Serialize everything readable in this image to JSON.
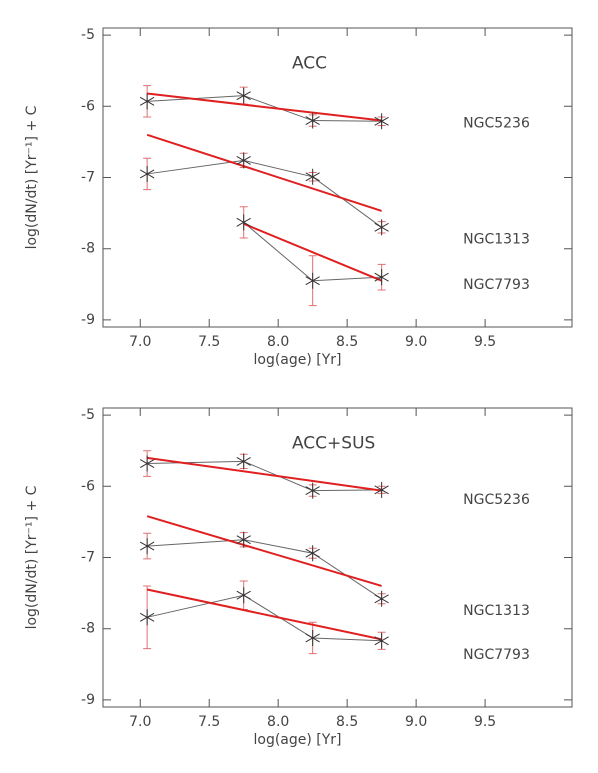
{
  "chart_data": [
    {
      "type": "line",
      "annotation": "ACC",
      "xlabel": "log(age) [Yr]",
      "ylabel": "log(dN/dt) [Yr⁻¹] + C",
      "xlim": [
        6.73,
        10.13
      ],
      "ylim": [
        -9.1,
        -4.9
      ],
      "xticks": [
        {
          "value": 7,
          "label": "7.0"
        },
        7.5,
        {
          "value": 8,
          "label": "8.0"
        },
        8.5,
        {
          "value": 9,
          "label": "9.0"
        },
        9.5
      ],
      "yticks": [
        -5,
        -6,
        -7,
        -8,
        -9
      ],
      "series": [
        {
          "name": "NGC5236",
          "color": "#666666",
          "error_color": "#e07070",
          "x": [
            7.05,
            7.75,
            8.25,
            8.75
          ],
          "values": [
            -5.93,
            -5.85,
            -6.2,
            -6.21
          ],
          "errors": [
            0.22,
            0.12,
            0.08,
            0.06
          ],
          "fit": {
            "color": "#e02020",
            "x": [
              7.05,
              8.75
            ],
            "values": [
              -5.82,
              -6.2
            ]
          }
        },
        {
          "name": "NGC1313",
          "color": "#666666",
          "error_color": "#e07070",
          "x": [
            7.05,
            7.75,
            8.25,
            8.75
          ],
          "values": [
            -6.95,
            -6.76,
            -6.99,
            -7.7
          ],
          "errors": [
            0.22,
            0.1,
            0.06,
            0.08
          ],
          "fit": {
            "color": "#e02020",
            "x": [
              7.05,
              8.75
            ],
            "values": [
              -6.4,
              -7.47
            ]
          }
        },
        {
          "name": "NGC7793",
          "color": "#666666",
          "error_color": "#e07070",
          "x": [
            7.75,
            8.25,
            8.75
          ],
          "values": [
            -7.63,
            -8.45,
            -8.4
          ],
          "errors": [
            0.22,
            0.35,
            0.18
          ],
          "fit": {
            "color": "#e02020",
            "x": [
              7.75,
              8.75
            ],
            "values": [
              -7.65,
              -8.45
            ]
          }
        }
      ]
    },
    {
      "type": "line",
      "annotation": "ACC+SUS",
      "xlabel": "log(age) [Yr]",
      "ylabel": "log(dN/dt) [Yr⁻¹] + C",
      "xlim": [
        6.73,
        10.13
      ],
      "ylim": [
        -9.1,
        -4.9
      ],
      "xticks": [
        {
          "value": 7,
          "label": "7.0"
        },
        7.5,
        {
          "value": 8,
          "label": "8.0"
        },
        8.5,
        {
          "value": 9,
          "label": "9.0"
        },
        9.5
      ],
      "yticks": [
        -5,
        -6,
        -7,
        -8,
        -9
      ],
      "series": [
        {
          "name": "NGC5236",
          "color": "#666666",
          "error_color": "#e07070",
          "x": [
            7.05,
            7.75,
            8.25,
            8.75
          ],
          "values": [
            -5.68,
            -5.65,
            -6.06,
            -6.05
          ],
          "errors": [
            0.18,
            0.1,
            0.08,
            0.05
          ],
          "fit": {
            "color": "#e02020",
            "x": [
              7.05,
              8.75
            ],
            "values": [
              -5.6,
              -6.06
            ]
          }
        },
        {
          "name": "NGC1313",
          "color": "#666666",
          "error_color": "#e07070",
          "x": [
            7.05,
            7.75,
            8.25,
            8.75
          ],
          "values": [
            -6.84,
            -6.75,
            -6.94,
            -7.58
          ],
          "errors": [
            0.18,
            0.1,
            0.07,
            0.07
          ],
          "fit": {
            "color": "#e02020",
            "x": [
              7.05,
              8.75
            ],
            "values": [
              -6.42,
              -7.4
            ]
          }
        },
        {
          "name": "NGC7793",
          "color": "#666666",
          "error_color": "#e07070",
          "x": [
            7.05,
            7.75,
            8.25,
            8.75
          ],
          "values": [
            -7.84,
            -7.53,
            -8.13,
            -8.17
          ],
          "errors": [
            0.44,
            0.2,
            0.22,
            0.12
          ],
          "fit": {
            "color": "#e02020",
            "x": [
              7.05,
              8.75
            ],
            "values": [
              -7.45,
              -8.15
            ]
          }
        }
      ]
    }
  ]
}
